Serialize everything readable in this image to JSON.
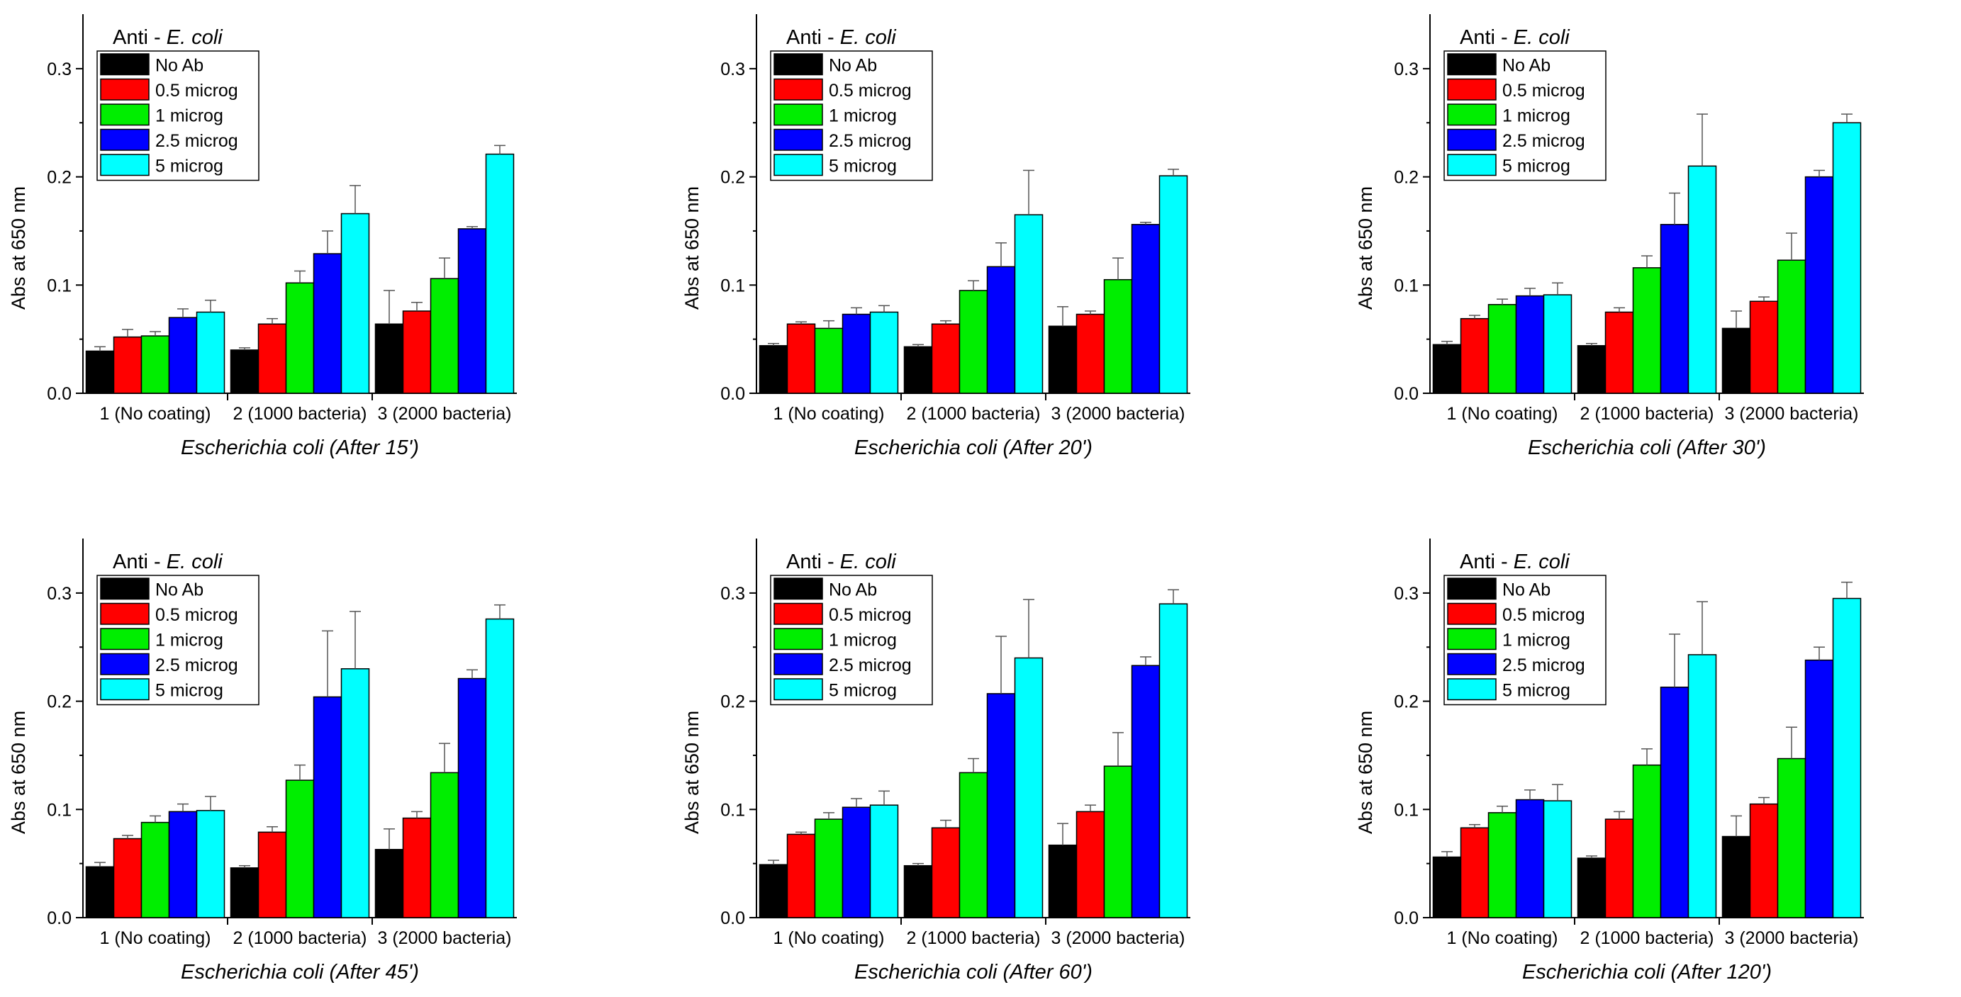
{
  "figure": {
    "series_colors": [
      "#000000",
      "#ff0000",
      "#00ee00",
      "#0000ff",
      "#00ffff"
    ]
  },
  "chart_data": [
    {
      "type": "bar",
      "title_prefix": "Anti - ",
      "title_italic": "E. coli",
      "xlabel": "Escherichia coli (After 15')",
      "ylabel": "Abs at 650 nm",
      "ylim": [
        0,
        0.35
      ],
      "yticks": [
        "0.0",
        "0.1",
        "0.2",
        "0.3"
      ],
      "categories": [
        "1 (No coating)",
        "2 (1000 bacteria)",
        "3 (2000 bacteria)"
      ],
      "legend_position": "top-left",
      "series": [
        {
          "name": "No Ab",
          "values": [
            0.039,
            0.04,
            0.064
          ],
          "errors": [
            0.004,
            0.002,
            0.031
          ]
        },
        {
          "name": "0.5 microg",
          "values": [
            0.052,
            0.064,
            0.076
          ],
          "errors": [
            0.007,
            0.005,
            0.008
          ]
        },
        {
          "name": "1 microg",
          "values": [
            0.053,
            0.102,
            0.106
          ],
          "errors": [
            0.004,
            0.011,
            0.019
          ]
        },
        {
          "name": "2.5 microg",
          "values": [
            0.07,
            0.129,
            0.152
          ],
          "errors": [
            0.008,
            0.021,
            0.002
          ]
        },
        {
          "name": "5 microg",
          "values": [
            0.075,
            0.166,
            0.221
          ],
          "errors": [
            0.011,
            0.026,
            0.008
          ]
        }
      ]
    },
    {
      "type": "bar",
      "title_prefix": "Anti - ",
      "title_italic": "E. coli",
      "xlabel": "Escherichia coli (After 20')",
      "ylabel": "Abs at 650 nm",
      "ylim": [
        0,
        0.35
      ],
      "yticks": [
        "0.0",
        "0.1",
        "0.2",
        "0.3"
      ],
      "categories": [
        "1 (No coating)",
        "2 (1000 bacteria)",
        "3 (2000 bacteria)"
      ],
      "legend_position": "top-left",
      "series": [
        {
          "name": "No Ab",
          "values": [
            0.044,
            0.043,
            0.062
          ],
          "errors": [
            0.002,
            0.002,
            0.018
          ]
        },
        {
          "name": "0.5 microg",
          "values": [
            0.064,
            0.064,
            0.073
          ],
          "errors": [
            0.002,
            0.003,
            0.003
          ]
        },
        {
          "name": "1 microg",
          "values": [
            0.06,
            0.095,
            0.105
          ],
          "errors": [
            0.007,
            0.009,
            0.02
          ]
        },
        {
          "name": "2.5 microg",
          "values": [
            0.073,
            0.117,
            0.156
          ],
          "errors": [
            0.006,
            0.022,
            0.002
          ]
        },
        {
          "name": "5 microg",
          "values": [
            0.075,
            0.165,
            0.201
          ],
          "errors": [
            0.006,
            0.041,
            0.006
          ]
        }
      ]
    },
    {
      "type": "bar",
      "title_prefix": "Anti - ",
      "title_italic": "E. coli",
      "xlabel": "Escherichia coli (After 30')",
      "ylabel": "Abs at 650 nm",
      "ylim": [
        0,
        0.35
      ],
      "yticks": [
        "0.0",
        "0.1",
        "0.2",
        "0.3"
      ],
      "categories": [
        "1 (No coating)",
        "2 (1000 bacteria)",
        "3 (2000 bacteria)"
      ],
      "legend_position": "top-left",
      "series": [
        {
          "name": "No Ab",
          "values": [
            0.045,
            0.044,
            0.06
          ],
          "errors": [
            0.003,
            0.002,
            0.016
          ]
        },
        {
          "name": "0.5 microg",
          "values": [
            0.069,
            0.075,
            0.085
          ],
          "errors": [
            0.003,
            0.004,
            0.004
          ]
        },
        {
          "name": "1 microg",
          "values": [
            0.082,
            0.116,
            0.123
          ],
          "errors": [
            0.005,
            0.011,
            0.025
          ]
        },
        {
          "name": "2.5 microg",
          "values": [
            0.09,
            0.156,
            0.2
          ],
          "errors": [
            0.007,
            0.029,
            0.006
          ]
        },
        {
          "name": "5 microg",
          "values": [
            0.091,
            0.21,
            0.25
          ],
          "errors": [
            0.011,
            0.048,
            0.008
          ]
        }
      ]
    },
    {
      "type": "bar",
      "title_prefix": "Anti - ",
      "title_italic": "E. coli",
      "xlabel": "Escherichia coli (After 45')",
      "ylabel": "Abs at 650 nm",
      "ylim": [
        0,
        0.35
      ],
      "yticks": [
        "0.0",
        "0.1",
        "0.2",
        "0.3"
      ],
      "categories": [
        "1 (No coating)",
        "2 (1000 bacteria)",
        "3 (2000 bacteria)"
      ],
      "legend_position": "top-left",
      "series": [
        {
          "name": "No Ab",
          "values": [
            0.047,
            0.046,
            0.063
          ],
          "errors": [
            0.004,
            0.002,
            0.019
          ]
        },
        {
          "name": "0.5 microg",
          "values": [
            0.073,
            0.079,
            0.092
          ],
          "errors": [
            0.003,
            0.005,
            0.006
          ]
        },
        {
          "name": "1 microg",
          "values": [
            0.088,
            0.127,
            0.134
          ],
          "errors": [
            0.006,
            0.014,
            0.027
          ]
        },
        {
          "name": "2.5 microg",
          "values": [
            0.098,
            0.204,
            0.221
          ],
          "errors": [
            0.007,
            0.061,
            0.008
          ]
        },
        {
          "name": "5 microg",
          "values": [
            0.099,
            0.23,
            0.276
          ],
          "errors": [
            0.013,
            0.053,
            0.013
          ]
        }
      ]
    },
    {
      "type": "bar",
      "title_prefix": "Anti - ",
      "title_italic": "E. coli",
      "xlabel": "Escherichia coli (After 60')",
      "ylabel": "Abs at 650 nm",
      "ylim": [
        0,
        0.35
      ],
      "yticks": [
        "0.0",
        "0.1",
        "0.2",
        "0.3"
      ],
      "categories": [
        "1 (No coating)",
        "2 (1000 bacteria)",
        "3 (2000 bacteria)"
      ],
      "legend_position": "top-left",
      "series": [
        {
          "name": "No Ab",
          "values": [
            0.049,
            0.048,
            0.067
          ],
          "errors": [
            0.004,
            0.002,
            0.02
          ]
        },
        {
          "name": "0.5 microg",
          "values": [
            0.077,
            0.083,
            0.098
          ],
          "errors": [
            0.002,
            0.007,
            0.006
          ]
        },
        {
          "name": "1 microg",
          "values": [
            0.091,
            0.134,
            0.14
          ],
          "errors": [
            0.006,
            0.013,
            0.031
          ]
        },
        {
          "name": "2.5 microg",
          "values": [
            0.102,
            0.207,
            0.233
          ],
          "errors": [
            0.008,
            0.053,
            0.008
          ]
        },
        {
          "name": "5 microg",
          "values": [
            0.104,
            0.24,
            0.29
          ],
          "errors": [
            0.013,
            0.054,
            0.013
          ]
        }
      ]
    },
    {
      "type": "bar",
      "title_prefix": "Anti - ",
      "title_italic": "E. coli",
      "xlabel": "Escherichia coli (After 120')",
      "ylabel": "Abs at 650 nm",
      "ylim": [
        0,
        0.35
      ],
      "yticks": [
        "0.0",
        "0.1",
        "0.2",
        "0.3"
      ],
      "categories": [
        "1 (No coating)",
        "2 (1000 bacteria)",
        "3 (2000 bacteria)"
      ],
      "legend_position": "top-left",
      "series": [
        {
          "name": "No Ab",
          "values": [
            0.056,
            0.055,
            0.075
          ],
          "errors": [
            0.005,
            0.002,
            0.019
          ]
        },
        {
          "name": "0.5 microg",
          "values": [
            0.083,
            0.091,
            0.105
          ],
          "errors": [
            0.003,
            0.007,
            0.006
          ]
        },
        {
          "name": "1 microg",
          "values": [
            0.097,
            0.141,
            0.147
          ],
          "errors": [
            0.006,
            0.015,
            0.029
          ]
        },
        {
          "name": "2.5 microg",
          "values": [
            0.109,
            0.213,
            0.238
          ],
          "errors": [
            0.009,
            0.049,
            0.012
          ]
        },
        {
          "name": "5 microg",
          "values": [
            0.108,
            0.243,
            0.295
          ],
          "errors": [
            0.015,
            0.049,
            0.015
          ]
        }
      ]
    }
  ]
}
